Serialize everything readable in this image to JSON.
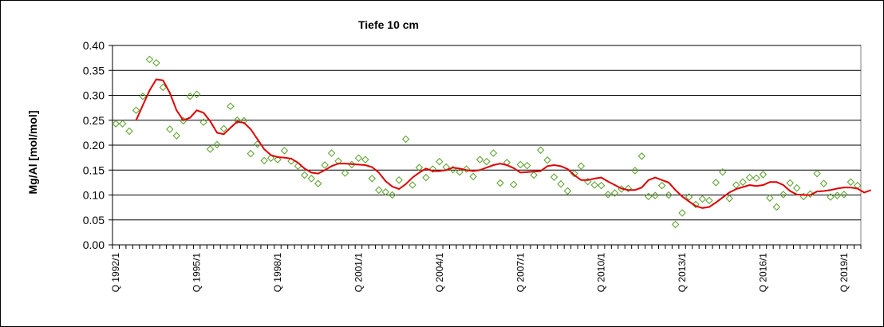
{
  "chart_data": {
    "type": "line",
    "title": "Tiefe  10 cm",
    "xlabel": "",
    "ylabel": "Mg/Al [mol/mol]",
    "ylim": [
      0,
      0.4
    ],
    "yticks": [
      "0.00",
      "0.05",
      "0.10",
      "0.15",
      "0.20",
      "0.25",
      "0.30",
      "0.35",
      "0.40"
    ],
    "x_tick_labels": [
      "Q 1992/1",
      "Q 1995/1",
      "Q 1998/1",
      "Q 2001/1",
      "Q 2004/1",
      "Q 2007/1",
      "Q 2010/1",
      "Q 2013/1",
      "Q 2016/1",
      "Q 2019/1"
    ],
    "grid": "horizontal",
    "x_first_quarter": "Q 1992/1",
    "series": [
      {
        "kind": "scatter",
        "marker": "diamond-outline",
        "color": "#5aa02c",
        "values": [
          0.243,
          0.243,
          0.228,
          0.27,
          0.298,
          0.372,
          0.365,
          0.316,
          0.232,
          0.219,
          0.249,
          0.298,
          0.302,
          0.246,
          0.192,
          0.201,
          0.233,
          0.278,
          0.25,
          0.249,
          0.183,
          0.202,
          0.169,
          0.174,
          0.171,
          0.189,
          0.168,
          0.158,
          0.14,
          0.133,
          0.123,
          0.16,
          0.184,
          0.168,
          0.144,
          0.161,
          0.174,
          0.171,
          0.133,
          0.11,
          0.106,
          0.1,
          0.13,
          0.212,
          0.12,
          0.155,
          0.135,
          0.152,
          0.167,
          0.156,
          0.151,
          0.146,
          0.152,
          0.137,
          0.171,
          0.167,
          0.184,
          0.124,
          0.165,
          0.121,
          0.161,
          0.159,
          0.14,
          0.19,
          0.17,
          0.136,
          0.122,
          0.108,
          0.143,
          0.158,
          0.127,
          0.12,
          0.119,
          0.101,
          0.104,
          0.112,
          0.113,
          0.149,
          0.178,
          0.097,
          0.099,
          0.119,
          0.1,
          0.041,
          0.064,
          0.096,
          0.081,
          0.092,
          0.089,
          0.125,
          0.146,
          0.093,
          0.12,
          0.126,
          0.135,
          0.134,
          0.141,
          0.094,
          0.076,
          0.101,
          0.124,
          0.114,
          0.097,
          0.102,
          0.143,
          0.123,
          0.096,
          0.099,
          0.101,
          0.126,
          0.119
        ]
      },
      {
        "kind": "line",
        "color": "#e00000",
        "start_index": 3,
        "values": [
          0.25,
          0.28,
          0.31,
          0.332,
          0.33,
          0.305,
          0.27,
          0.25,
          0.255,
          0.27,
          0.265,
          0.248,
          0.225,
          0.222,
          0.235,
          0.247,
          0.245,
          0.232,
          0.212,
          0.192,
          0.18,
          0.176,
          0.175,
          0.173,
          0.165,
          0.153,
          0.145,
          0.143,
          0.15,
          0.158,
          0.163,
          0.163,
          0.162,
          0.161,
          0.16,
          0.156,
          0.145,
          0.128,
          0.117,
          0.112,
          0.122,
          0.135,
          0.145,
          0.153,
          0.148,
          0.148,
          0.15,
          0.155,
          0.153,
          0.15,
          0.148,
          0.15,
          0.155,
          0.16,
          0.163,
          0.16,
          0.154,
          0.145,
          0.146,
          0.147,
          0.148,
          0.158,
          0.16,
          0.158,
          0.152,
          0.14,
          0.13,
          0.13,
          0.133,
          0.135,
          0.127,
          0.12,
          0.113,
          0.11,
          0.11,
          0.115,
          0.13,
          0.135,
          0.13,
          0.125,
          0.11,
          0.097,
          0.087,
          0.078,
          0.074,
          0.076,
          0.085,
          0.095,
          0.105,
          0.112,
          0.116,
          0.12,
          0.118,
          0.12,
          0.126,
          0.126,
          0.12,
          0.108,
          0.101,
          0.1,
          0.1,
          0.107,
          0.108,
          0.11,
          0.113,
          0.115,
          0.115,
          0.113,
          0.105,
          0.11
        ]
      }
    ]
  }
}
